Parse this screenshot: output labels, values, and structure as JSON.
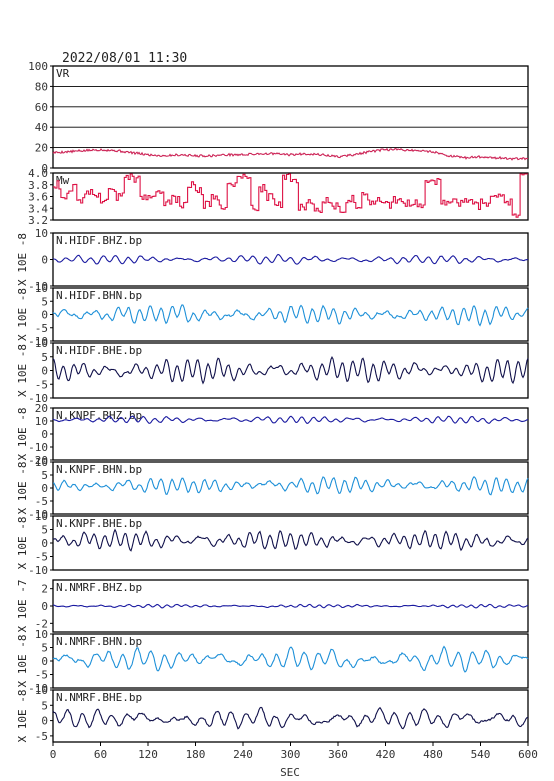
{
  "colors": {
    "frame": "#000000",
    "vr": "#cc2255",
    "mw": "#dd1144",
    "bhz": "#1a1aa0",
    "bhn": "#1e90d8",
    "bhe": "#10104a",
    "grid": "#000000"
  },
  "chart_data": {
    "type": "line",
    "title": "2022/08/01 11:30",
    "xlabel": "SEC",
    "xlim": [
      0,
      600
    ],
    "xticks": [
      "0",
      "60",
      "120",
      "180",
      "240",
      "300",
      "360",
      "420",
      "480",
      "540",
      "600"
    ],
    "panels": [
      {
        "key": "vr",
        "label": "VR",
        "ylabel": "",
        "ylim": [
          0,
          100
        ],
        "yticks": [
          "100",
          "80",
          "60",
          "40",
          "20",
          "0"
        ],
        "grid": true,
        "color_key": "vr",
        "series": {
          "kind": "smooth",
          "x": [
            0,
            20,
            40,
            60,
            80,
            100,
            120,
            140,
            160,
            180,
            200,
            220,
            240,
            260,
            280,
            300,
            320,
            340,
            360,
            380,
            400,
            420,
            440,
            460,
            480,
            500,
            520,
            540,
            560,
            580,
            600
          ],
          "y": [
            15,
            16,
            17,
            18,
            17,
            15,
            13,
            12,
            13,
            12,
            12,
            13,
            13,
            14,
            14,
            13,
            14,
            13,
            11,
            13,
            16,
            18,
            18,
            17,
            16,
            12,
            10,
            11,
            10,
            9,
            9
          ]
        }
      },
      {
        "key": "mw",
        "label": "Mw",
        "ylabel": "",
        "ylim": [
          3.2,
          4.0
        ],
        "yticks": [
          "4.0",
          "3.8",
          "3.6",
          "3.4",
          "3.2"
        ],
        "grid": false,
        "color_key": "mw",
        "series": {
          "kind": "step",
          "x": [
            0,
            10,
            20,
            30,
            40,
            50,
            60,
            70,
            80,
            90,
            100,
            110,
            120,
            130,
            140,
            150,
            160,
            170,
            180,
            190,
            200,
            210,
            220,
            230,
            240,
            250,
            260,
            270,
            280,
            290,
            300,
            310,
            320,
            330,
            340,
            350,
            360,
            370,
            380,
            390,
            400,
            410,
            420,
            430,
            440,
            450,
            460,
            470,
            480,
            490,
            500,
            510,
            520,
            530,
            540,
            550,
            560,
            570,
            580,
            590,
            600
          ],
          "y": [
            3.8,
            3.6,
            3.75,
            3.55,
            3.7,
            3.6,
            3.55,
            3.7,
            3.6,
            3.95,
            3.9,
            3.6,
            3.55,
            3.7,
            3.5,
            3.55,
            3.45,
            3.8,
            3.7,
            3.45,
            3.6,
            3.45,
            3.8,
            3.9,
            3.95,
            3.4,
            3.75,
            3.6,
            3.45,
            3.95,
            3.9,
            3.4,
            3.5,
            3.35,
            3.55,
            3.45,
            3.4,
            3.55,
            3.45,
            3.6,
            3.5,
            3.55,
            3.45,
            3.55,
            3.5,
            3.5,
            3.45,
            3.9,
            3.85,
            3.5,
            3.55,
            3.5,
            3.55,
            3.45,
            3.5,
            3.55,
            3.6,
            3.5,
            3.3,
            4.0,
            3.3
          ]
        }
      },
      {
        "key": "hidf_bhz",
        "label": "N.HIDF.BHZ.bp",
        "ylabel": "X 10E -8",
        "ylim": [
          -10,
          10
        ],
        "yticks": [
          "10",
          "0",
          "-10"
        ],
        "grid": false,
        "color_key": "bhz",
        "series": {
          "kind": "wave",
          "amp": 1.3,
          "noise": 0.5,
          "seed": 3,
          "cycles": 38
        }
      },
      {
        "key": "hidf_bhn",
        "label": "N.HIDF.BHN.bp",
        "ylabel": "X 10E -8",
        "ylim": [
          -10,
          10
        ],
        "yticks": [
          "10",
          "5",
          "0",
          "-5",
          "-10"
        ],
        "grid": false,
        "color_key": "bhn",
        "series": {
          "kind": "wave",
          "amp": 2.8,
          "noise": 1.2,
          "seed": 7,
          "cycles": 44
        }
      },
      {
        "key": "hidf_bhe",
        "label": "N.HIDF.BHE.bp",
        "ylabel": "X 10E -8",
        "ylim": [
          -10,
          10
        ],
        "yticks": [
          "10",
          "5",
          "0",
          "-5",
          "-10"
        ],
        "grid": false,
        "color_key": "bhe",
        "series": {
          "kind": "wave",
          "amp": 3.6,
          "noise": 1.0,
          "seed": 11,
          "cycles": 46
        }
      },
      {
        "key": "knpf_bhz",
        "label": "N.KNPF.BHZ.bp",
        "ylabel": "X 10E -8",
        "ylim": [
          -20,
          20
        ],
        "yticks": [
          "20",
          "10",
          "0",
          "-10",
          "-20"
        ],
        "grid": false,
        "color_key": "bhz",
        "series": {
          "kind": "wave",
          "amp": 2.2,
          "noise": 0.8,
          "seed": 13,
          "cycles": 42,
          "offset": 11
        }
      },
      {
        "key": "knpf_bhn",
        "label": "N.KNPF.BHN.bp",
        "ylabel": "X 10E -8",
        "ylim": [
          -10,
          10
        ],
        "yticks": [
          "10",
          "5",
          "0",
          "-5",
          "-10"
        ],
        "grid": false,
        "color_key": "bhn",
        "series": {
          "kind": "wave",
          "amp": 2.6,
          "noise": 1.0,
          "seed": 17,
          "cycles": 44,
          "offset": 1
        }
      },
      {
        "key": "knpf_bhe",
        "label": "N.KNPF.BHE.bp",
        "ylabel": "X 10E -8",
        "ylim": [
          -10,
          10
        ],
        "yticks": [
          "10",
          "5",
          "0",
          "-5",
          "-10"
        ],
        "grid": false,
        "color_key": "bhe",
        "series": {
          "kind": "wave",
          "amp": 2.8,
          "noise": 1.1,
          "seed": 19,
          "cycles": 46,
          "offset": 1
        }
      },
      {
        "key": "nmrf_bhz",
        "label": "N.NMRF.BHZ.bp",
        "ylabel": "X 10E -7",
        "ylim": [
          -3,
          3
        ],
        "yticks": [
          "2",
          "0",
          "-2"
        ],
        "grid": false,
        "color_key": "bhz",
        "series": {
          "kind": "wave",
          "amp": 0.15,
          "noise": 0.08,
          "seed": 23,
          "cycles": 50
        }
      },
      {
        "key": "nmrf_bhn",
        "label": "N.NMRF.BHN.bp",
        "ylabel": "X 10E -8",
        "ylim": [
          -10,
          10
        ],
        "yticks": [
          "10",
          "5",
          "0",
          "-5",
          "-10"
        ],
        "grid": false,
        "color_key": "bhn",
        "series": {
          "kind": "wave",
          "amp": 3.2,
          "noise": 1.4,
          "seed": 29,
          "cycles": 34,
          "offset": 0.5
        }
      },
      {
        "key": "nmrf_bhe",
        "label": "N.NMRF.BHE.bp",
        "ylabel": "X 10E -8",
        "ylim": [
          -7,
          10
        ],
        "yticks": [
          "10",
          "5",
          "0",
          "-5"
        ],
        "grid": false,
        "color_key": "bhe",
        "series": {
          "kind": "wave",
          "amp": 2.6,
          "noise": 1.4,
          "seed": 31,
          "cycles": 32,
          "offset": 0.5
        }
      }
    ]
  }
}
